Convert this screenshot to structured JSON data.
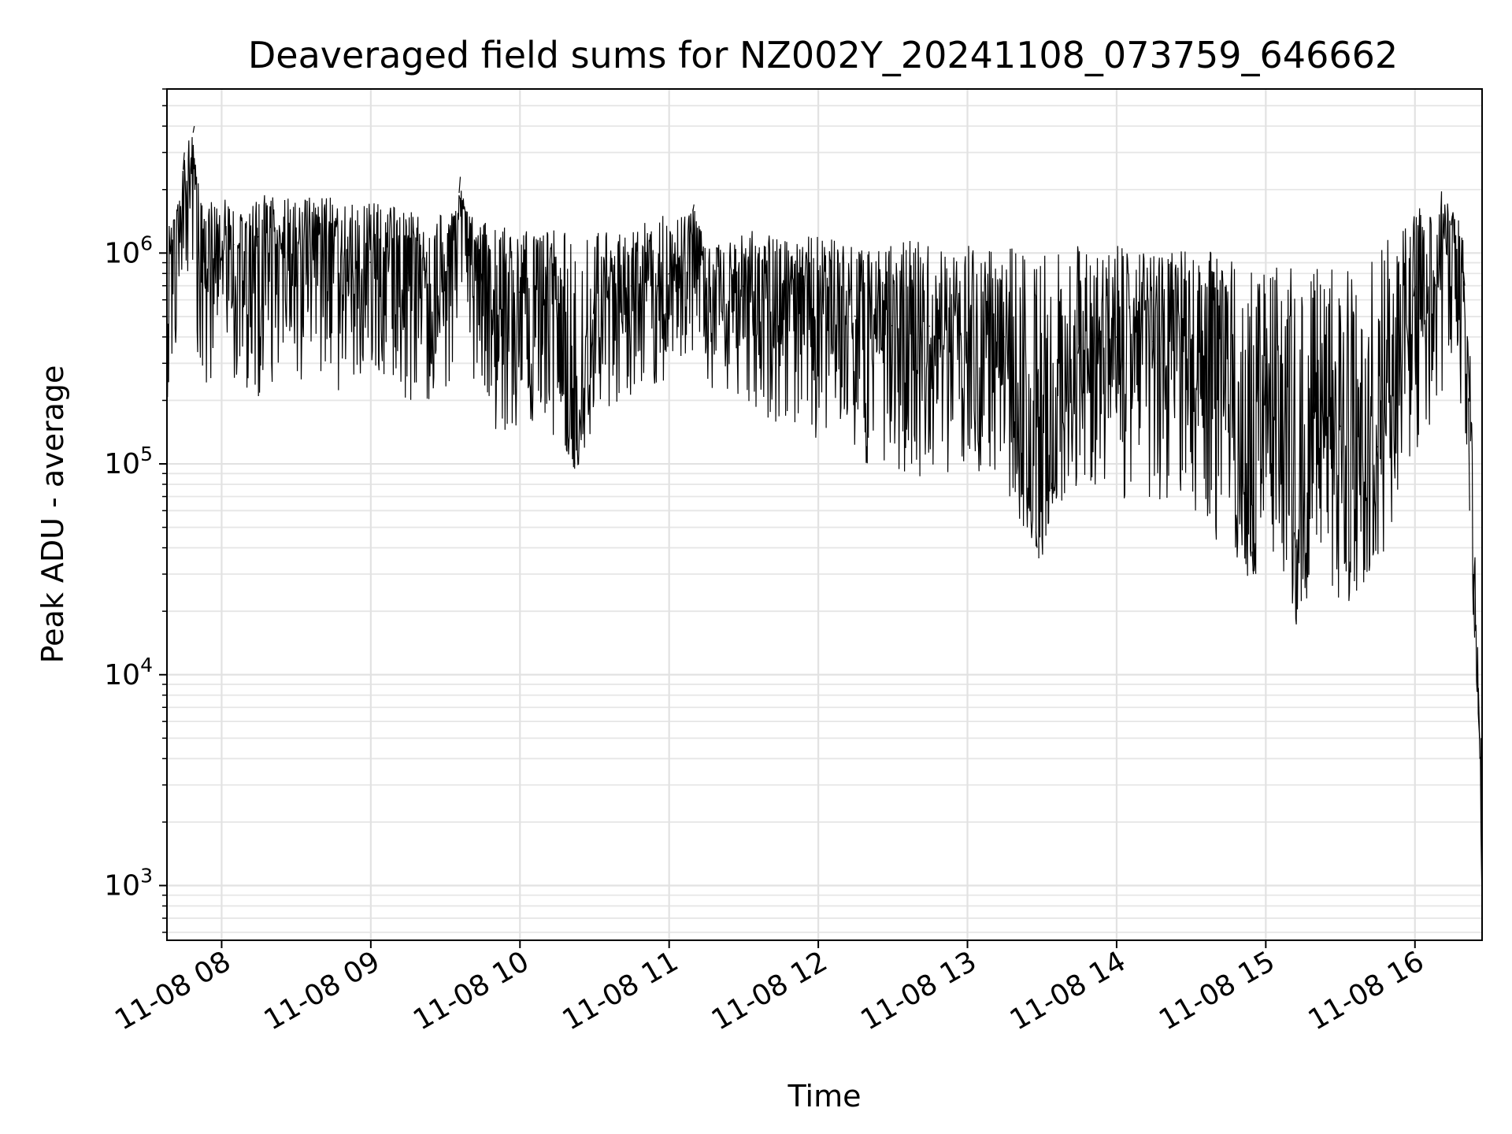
{
  "chart_data": {
    "type": "line",
    "title": "Deaveraged field sums for NZ002Y_20241108_073759_646662",
    "xlabel": "Time",
    "ylabel": "Peak ADU - average",
    "yscale": "log",
    "grid": true,
    "x_range": [
      "11-08 07:38",
      "11-08 16:27"
    ],
    "ylim": [
      550,
      6000000
    ],
    "x_ticks": [
      "11-08 08",
      "11-08 09",
      "11-08 10",
      "11-08 11",
      "11-08 12",
      "11-08 13",
      "11-08 14",
      "11-08 15",
      "11-08 16"
    ],
    "y_ticks": [
      {
        "base": "10",
        "exp": "3",
        "value": 1000
      },
      {
        "base": "10",
        "exp": "4",
        "value": 10000
      },
      {
        "base": "10",
        "exp": "5",
        "value": 100000
      },
      {
        "base": "10",
        "exp": "6",
        "value": 1000000
      }
    ],
    "series": [
      {
        "color": "#000000",
        "x": [
          "11-08 07:38",
          "11-08 07:45",
          "11-08 07:49",
          "11-08 07:53",
          "11-08 07:58",
          "11-08 08:05",
          "11-08 08:15",
          "11-08 08:30",
          "11-08 08:45",
          "11-08 09:00",
          "11-08 09:15",
          "11-08 09:30",
          "11-08 09:36",
          "11-08 09:45",
          "11-08 10:00",
          "11-08 10:15",
          "11-08 10:22",
          "11-08 10:30",
          "11-08 10:45",
          "11-08 11:00",
          "11-08 11:10",
          "11-08 11:15",
          "11-08 11:30",
          "11-08 11:45",
          "11-08 12:00",
          "11-08 12:15",
          "11-08 12:30",
          "11-08 12:45",
          "11-08 13:00",
          "11-08 13:15",
          "11-08 13:28",
          "11-08 13:45",
          "11-08 14:00",
          "11-08 14:15",
          "11-08 14:30",
          "11-08 14:45",
          "11-08 14:55",
          "11-08 15:00",
          "11-08 15:12",
          "11-08 15:20",
          "11-08 15:30",
          "11-08 15:45",
          "11-08 16:00",
          "11-08 16:10",
          "11-08 16:15",
          "11-08 16:20",
          "11-08 16:22",
          "11-08 16:24",
          "11-08 16:26",
          "11-08 16:27"
        ],
        "y": [
          800000,
          3000000,
          4000000,
          900000,
          1000000,
          1100000,
          1200000,
          1100000,
          1000000,
          900000,
          800000,
          800000,
          2300000,
          700000,
          650000,
          600000,
          100000,
          650000,
          700000,
          800000,
          1700000,
          600000,
          700000,
          600000,
          550000,
          500000,
          450000,
          450000,
          420000,
          400000,
          40000,
          380000,
          400000,
          380000,
          350000,
          350000,
          30000,
          300000,
          40000,
          200000,
          150000,
          120000,
          700000,
          900000,
          1500000,
          700000,
          60000,
          15000,
          5000,
          800
        ],
        "min": [
          200000,
          300000,
          400000,
          200000,
          250000,
          250000,
          200000,
          250000,
          200000,
          250000,
          200000,
          200000,
          300000,
          150000,
          140000,
          130000,
          90000,
          150000,
          180000,
          250000,
          300000,
          200000,
          200000,
          150000,
          120000,
          100000,
          90000,
          80000,
          90000,
          80000,
          33000,
          80000,
          70000,
          60000,
          50000,
          40000,
          25000,
          40000,
          16000,
          30000,
          20000,
          30000,
          100000,
          200000,
          300000,
          150000,
          55000,
          13000,
          5000,
          800
        ],
        "max": [
          1300000,
          1700000,
          2200000,
          1700000,
          1800000,
          1800000,
          1900000,
          1800000,
          1900000,
          1800000,
          1600000,
          1500000,
          1600000,
          1400000,
          1300000,
          1300000,
          1200000,
          1300000,
          1300000,
          1600000,
          1500000,
          1200000,
          1300000,
          1200000,
          1200000,
          1100000,
          1100000,
          1200000,
          1100000,
          1100000,
          1000000,
          1100000,
          1100000,
          1000000,
          1100000,
          1000000,
          900000,
          900000,
          900000,
          900000,
          900000,
          1000000,
          1700000,
          2000000,
          1800000,
          1200000,
          400000,
          40000,
          9000,
          900
        ]
      }
    ]
  }
}
